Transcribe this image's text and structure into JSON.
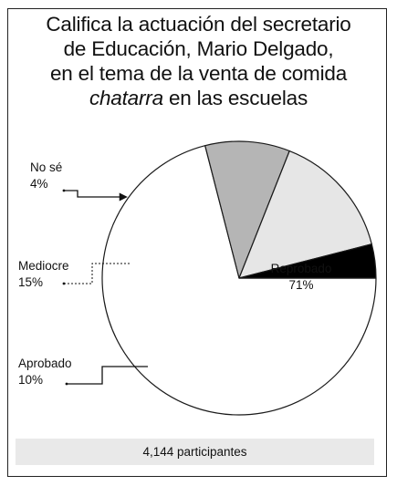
{
  "title_lines": {
    "line1": "Califica la actuación del secretario",
    "line2": "de Educación, Mario Delgado,",
    "line3": "en el tema de la venta de comida",
    "line4_italic": "chatarra",
    "line4_rest": " en las escuelas"
  },
  "footer": "4,144 participantes",
  "chart_data": {
    "type": "pie",
    "slices": [
      {
        "label": "Reprobado",
        "value": 71,
        "value_label": "71%",
        "color": "#ffffff"
      },
      {
        "label": "Aprobado",
        "value": 10,
        "value_label": "10%",
        "color": "#b5b5b5"
      },
      {
        "label": "Mediocre",
        "value": 15,
        "value_label": "15%",
        "color": "#e6e6e6"
      },
      {
        "label": "No sé",
        "value": 4,
        "value_label": "4%",
        "color": "#000000"
      }
    ],
    "start_angle_deg": 0,
    "direction": "clockwise"
  }
}
